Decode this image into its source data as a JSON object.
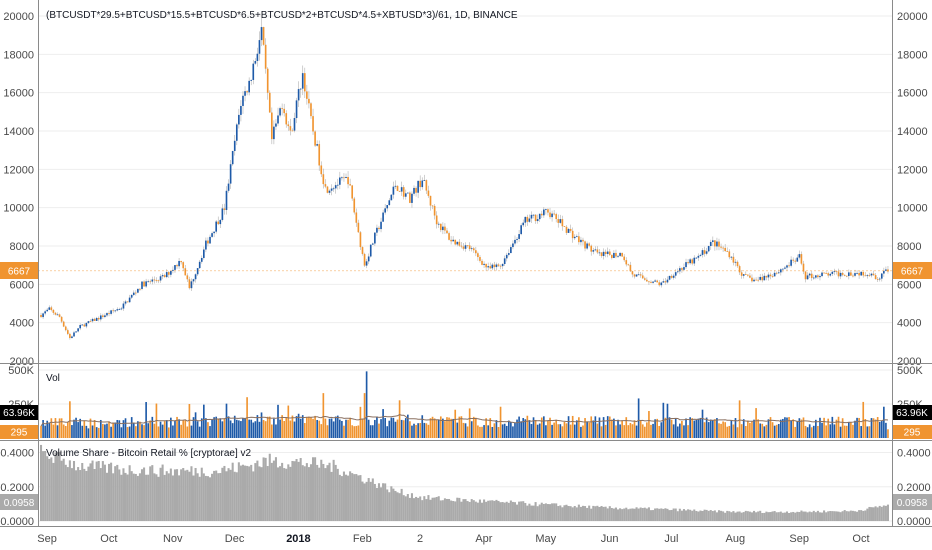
{
  "chart_data": [
    {
      "type": "candlestick",
      "title": "(BTCUSDT*29.5+BTCUSD*15.5+BTCUSD*6.5+BTCUSD*2+BTCUSD*4.5+XBTUSD*3)/61, 1D, BINANCE",
      "ylim": [
        2000,
        20000
      ],
      "y_ticks": [
        "2000",
        "4000",
        "6000",
        "8000",
        "10000",
        "12000",
        "14000",
        "16000",
        "18000",
        "20000"
      ],
      "last_value_label": "6667",
      "last_value": 6667,
      "up_color": "#1e5aa8",
      "down_color": "#f09430",
      "x_range": [
        "2017-09-01",
        "2018-10-17"
      ],
      "anchors": [
        [
          "2017-09-01",
          4400
        ],
        [
          "2017-09-05",
          4700
        ],
        [
          "2017-09-10",
          4300
        ],
        [
          "2017-09-15",
          3200
        ],
        [
          "2017-09-20",
          3800
        ],
        [
          "2017-09-30",
          4300
        ],
        [
          "2017-10-10",
          4800
        ],
        [
          "2017-10-20",
          6000
        ],
        [
          "2017-10-31",
          6400
        ],
        [
          "2017-11-08",
          7300
        ],
        [
          "2017-11-12",
          5800
        ],
        [
          "2017-11-20",
          8100
        ],
        [
          "2017-11-29",
          10000
        ],
        [
          "2017-12-07",
          15500
        ],
        [
          "2017-12-11",
          16500
        ],
        [
          "2017-12-17",
          19200
        ],
        [
          "2017-12-22",
          13500
        ],
        [
          "2017-12-27",
          15500
        ],
        [
          "2017-12-31",
          13800
        ],
        [
          "2018-01-06",
          17000
        ],
        [
          "2018-01-10",
          14500
        ],
        [
          "2018-01-17",
          11000
        ],
        [
          "2018-01-28",
          11500
        ],
        [
          "2018-02-05",
          7000
        ],
        [
          "2018-02-10",
          8500
        ],
        [
          "2018-02-20",
          11200
        ],
        [
          "2018-02-27",
          10500
        ],
        [
          "2018-03-05",
          11500
        ],
        [
          "2018-03-12",
          9300
        ],
        [
          "2018-03-19",
          8300
        ],
        [
          "2018-03-28",
          7900
        ],
        [
          "2018-04-06",
          6800
        ],
        [
          "2018-04-12",
          7000
        ],
        [
          "2018-04-24",
          9300
        ],
        [
          "2018-05-05",
          9800
        ],
        [
          "2018-05-10",
          9300
        ],
        [
          "2018-05-20",
          8300
        ],
        [
          "2018-05-30",
          7500
        ],
        [
          "2018-06-10",
          7600
        ],
        [
          "2018-06-15",
          6500
        ],
        [
          "2018-06-29",
          6000
        ],
        [
          "2018-07-05",
          6600
        ],
        [
          "2018-07-17",
          7400
        ],
        [
          "2018-07-24",
          8200
        ],
        [
          "2018-08-01",
          7600
        ],
        [
          "2018-08-08",
          6400
        ],
        [
          "2018-08-14",
          6200
        ],
        [
          "2018-08-25",
          6700
        ],
        [
          "2018-09-04",
          7400
        ],
        [
          "2018-09-07",
          6400
        ],
        [
          "2018-09-15",
          6500
        ],
        [
          "2018-09-30",
          6600
        ],
        [
          "2018-10-10",
          6600
        ],
        [
          "2018-10-11",
          6200
        ],
        [
          "2018-10-15",
          6700
        ],
        [
          "2018-10-17",
          6667
        ]
      ]
    },
    {
      "type": "bar",
      "title": "Vol",
      "ylim": [
        0,
        500000
      ],
      "y_ticks": [
        "250K",
        "500K"
      ],
      "last_value_label": "63.96K",
      "last_value": 63960,
      "moving_average_label": "295",
      "moving_average_value": 295
    },
    {
      "type": "area",
      "title": "Volume Share - Bitcoin Retail % [cryptorae] v2",
      "ylim": [
        0,
        0.45
      ],
      "y_ticks": [
        "0.0000",
        "0.2000",
        "0.4000"
      ],
      "last_value_label": "0.0958",
      "last_value": 0.0958,
      "color": "#aaaaaa",
      "anchors": [
        [
          "2017-09-01",
          0.41
        ],
        [
          "2017-09-20",
          0.33
        ],
        [
          "2017-10-10",
          0.31
        ],
        [
          "2017-11-01",
          0.3
        ],
        [
          "2017-11-25",
          0.3
        ],
        [
          "2017-12-10",
          0.33
        ],
        [
          "2017-12-20",
          0.36
        ],
        [
          "2018-01-05",
          0.35
        ],
        [
          "2018-01-20",
          0.33
        ],
        [
          "2018-02-06",
          0.25
        ],
        [
          "2018-02-20",
          0.18
        ],
        [
          "2018-03-05",
          0.14
        ],
        [
          "2018-04-01",
          0.12
        ],
        [
          "2018-05-01",
          0.1
        ],
        [
          "2018-06-01",
          0.08
        ],
        [
          "2018-07-01",
          0.07
        ],
        [
          "2018-08-01",
          0.055
        ],
        [
          "2018-09-01",
          0.055
        ],
        [
          "2018-10-01",
          0.06
        ],
        [
          "2018-10-17",
          0.0958
        ]
      ]
    }
  ],
  "x_axis": {
    "labels": [
      {
        "text": "Sep",
        "date": "2017-09-01"
      },
      {
        "text": "Oct",
        "date": "2017-10-01"
      },
      {
        "text": "Nov",
        "date": "2017-11-01"
      },
      {
        "text": "Dec",
        "date": "2017-12-01"
      },
      {
        "text": "2018",
        "date": "2018-01-01",
        "bold": true
      },
      {
        "text": "Feb",
        "date": "2018-02-01"
      },
      {
        "text": "2",
        "date": "2018-03-01"
      },
      {
        "text": "Apr",
        "date": "2018-04-01"
      },
      {
        "text": "May",
        "date": "2018-05-01"
      },
      {
        "text": "Jun",
        "date": "2018-06-01"
      },
      {
        "text": "Jul",
        "date": "2018-07-01"
      },
      {
        "text": "Aug",
        "date": "2018-08-01"
      },
      {
        "text": "Sep",
        "date": "2018-09-01"
      },
      {
        "text": "Oct",
        "date": "2018-10-01"
      }
    ]
  },
  "colors": {
    "orange": "#f09430",
    "blue": "#1e5aa8",
    "grid": "#eeeeee",
    "tag_dark": "#000000",
    "ma_line": "#8a7060",
    "share_fill": "#aaaaaa"
  }
}
